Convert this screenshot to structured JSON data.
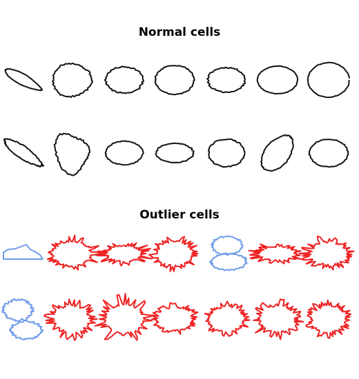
{
  "sections": {
    "normal": {
      "title": "Normal cells"
    },
    "outlier": {
      "title": "Outlier cells"
    }
  },
  "colors": {
    "normal": "#111111",
    "outlier": "#ee2222",
    "outlier_merged": "#6f9be8"
  }
}
